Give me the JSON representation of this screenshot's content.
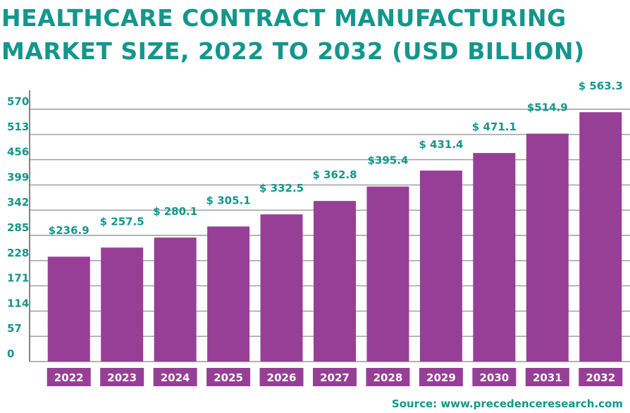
{
  "title_lines": [
    "HEALTHCARE CONTRACT MANUFACTURING",
    "MARKET SIZE, 2022 TO 2032 (USD BILLION)"
  ],
  "source": "Source: www.precedenceresearch.com",
  "colors": {
    "title": "#13968c",
    "bar": "#973f96",
    "grid": "#9a9a9a",
    "label": "#13968c"
  },
  "chart_data": {
    "type": "bar",
    "title": "HEALTHCARE CONTRACT MANUFACTURING MARKET SIZE, 2022 TO 2032 (USD BILLION)",
    "xlabel": "",
    "ylabel": "",
    "categories": [
      "2022",
      "2023",
      "2024",
      "2025",
      "2026",
      "2027",
      "2028",
      "2029",
      "2030",
      "2031",
      "2032"
    ],
    "values": [
      236.9,
      257.5,
      280.1,
      305.1,
      332.5,
      362.8,
      395.4,
      431.4,
      471.1,
      514.9,
      563.3
    ],
    "value_labels": [
      "$236.9",
      "$ 257.5",
      "$ 280.1",
      "$ 305.1",
      "$ 332.5",
      "$ 362.8",
      "$395.4",
      "$ 431.4",
      "$ 471.1",
      "$514.9",
      "$ 563.3"
    ],
    "yticks": [
      0,
      57,
      114,
      171,
      228,
      285,
      342,
      399,
      456,
      513,
      570
    ],
    "ylim": [
      0,
      570
    ],
    "grid": true,
    "legend": "none"
  }
}
